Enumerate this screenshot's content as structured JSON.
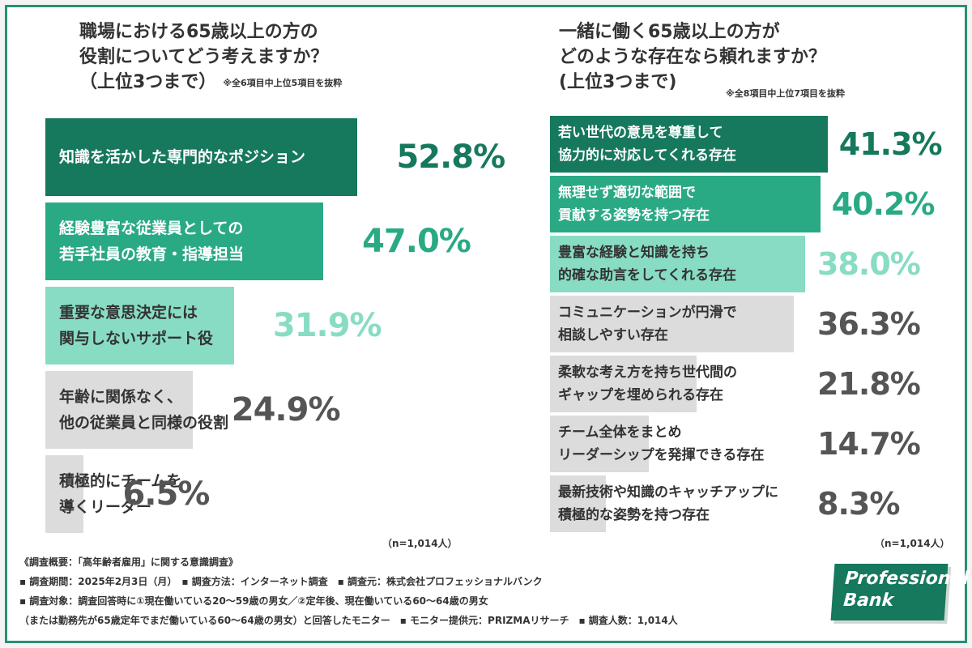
{
  "left_title": [
    "職場における65歳以上の方の",
    "役割についてどう考えますか？",
    "（上位3つまで）"
  ],
  "left_note": "※全6項目中上位5項目を抜粋",
  "right_title": [
    "一緒に働く65歳以上の方が",
    "どのような存在なら頼れますか？",
    "(上位3つまで)"
  ],
  "right_note": "※全8項目中上位7項目を抜粋",
  "n_label": "（n=1,014人）",
  "survey": [
    "《調査概要：「高年齢者雇用」に関する意識調査》",
    "▪ 調査期間：2025年2月3日（月）　▪ 調査方法：インターネット調査　▪ 調査元：株式会社プロフェッショナルバンク",
    "▪ 調査対象：調査回答時に①現在働いている20〜59歳の男女／②定年後、現在働いている60〜64歳の男女",
    "（または勤務先が65歳定年でまだ働いている60〜64歳の男女）と回答したモニター　▪ モニター提供元：PRIZMAリサーチ　▪ 調査人数：1,014人"
  ],
  "logo": [
    "Professional",
    "Bank"
  ],
  "colors": {
    "rank1": "#16785d",
    "rank2": "#2aa985",
    "rank3": "#88dcc4",
    "other": "#dcdcdc",
    "value_other": "#555555",
    "frame": "#2a8f74"
  },
  "chart_data": [
    {
      "type": "bar",
      "orientation": "horizontal",
      "categories": [
        [
          "知識を活かした専門的なポジション"
        ],
        [
          "経験豊富な従業員としての",
          "若手社員の教育・指導担当"
        ],
        [
          "重要な意思決定には",
          "関与しないサポート役"
        ],
        [
          "年齢に関係なく、",
          "他の従業員と同様の役割"
        ],
        [
          "積極的にチームを",
          "導くリーダー"
        ]
      ],
      "values": [
        52.8,
        47.0,
        31.9,
        24.9,
        6.5
      ],
      "value_labels": [
        "52.8%",
        "47.0%",
        "31.9%",
        "24.9%",
        "6.5%"
      ],
      "unit": "%"
    },
    {
      "type": "bar",
      "orientation": "horizontal",
      "categories": [
        [
          "若い世代の意見を尊重して",
          "協力的に対応してくれる存在"
        ],
        [
          "無理せず適切な範囲で",
          "貢献する姿勢を持つ存在"
        ],
        [
          "豊富な経験と知識を持ち",
          "的確な助言をしてくれる存在"
        ],
        [
          "コミュニケーションが円滑で",
          "相談しやすい存在"
        ],
        [
          "柔軟な考え方を持ち世代間の",
          "ギャップを埋められる存在"
        ],
        [
          "チーム全体をまとめ",
          "リーダーシップを発揮できる存在"
        ],
        [
          "最新技術や知識のキャッチアップに",
          "積極的な姿勢を持つ存在"
        ]
      ],
      "values": [
        41.3,
        40.2,
        38.0,
        36.3,
        21.8,
        14.7,
        8.3
      ],
      "value_labels": [
        "41.3%",
        "40.2%",
        "38.0%",
        "36.3%",
        "21.8%",
        "14.7%",
        "8.3%"
      ],
      "unit": "%"
    }
  ]
}
